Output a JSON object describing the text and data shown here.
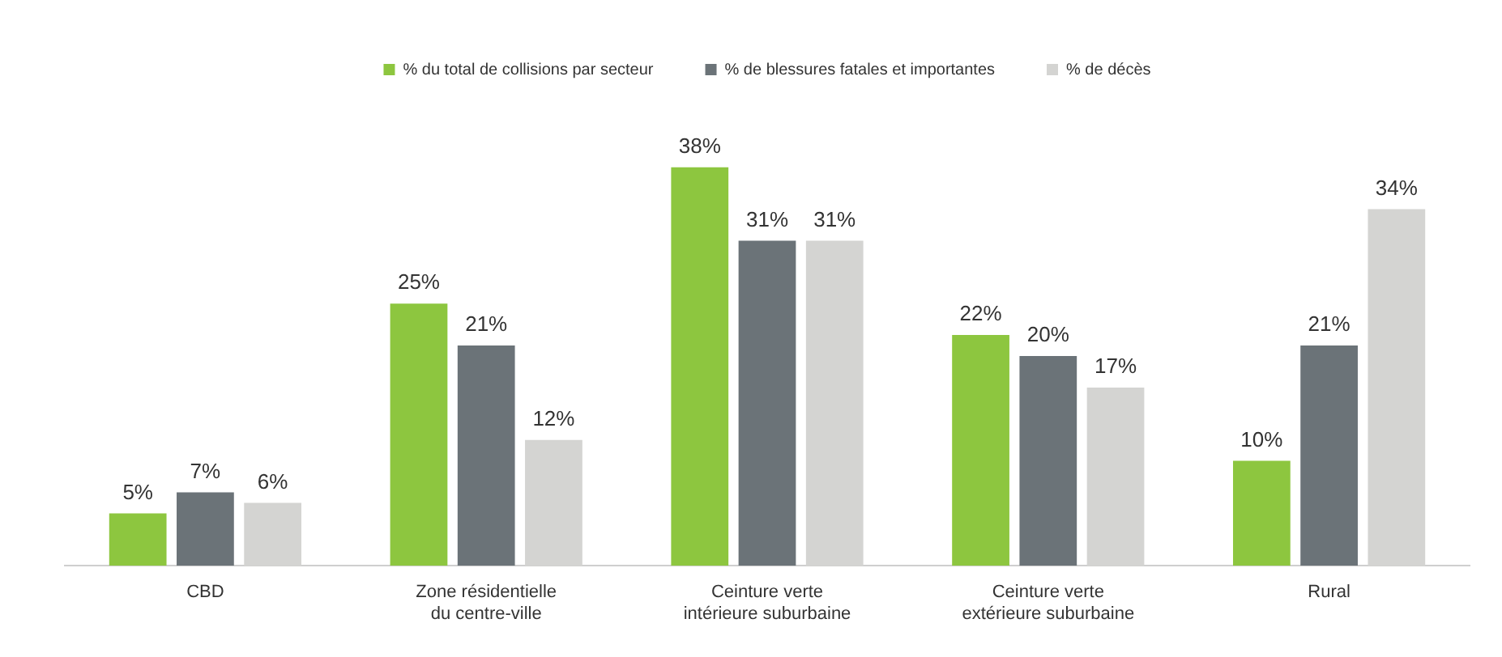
{
  "chart_data": {
    "type": "bar",
    "categories": [
      "CBD",
      "Zone résidentielle du centre-ville",
      "Ceinture verte intérieure suburbaine",
      "Ceinture verte extérieure suburbaine",
      "Rural"
    ],
    "series": [
      {
        "name": "% du total de collisions par secteur",
        "color": "#8dc63f",
        "values": [
          5,
          25,
          38,
          22,
          10
        ],
        "value_labels": [
          "5%",
          "25%",
          "38%",
          "22%",
          "10%"
        ]
      },
      {
        "name": "% de blessures fatales et importantes",
        "color": "#6b7378",
        "values": [
          7,
          21,
          31,
          20,
          21
        ],
        "value_labels": [
          "7%",
          "21%",
          "31%",
          "20%",
          "21%"
        ]
      },
      {
        "name": "% de décès",
        "color": "#d4d4d2",
        "values": [
          6,
          12,
          31,
          17,
          34
        ],
        "value_labels": [
          "6%",
          "12%",
          "31%",
          "17%",
          "34%"
        ]
      }
    ],
    "legend": "top",
    "grid": false
  }
}
